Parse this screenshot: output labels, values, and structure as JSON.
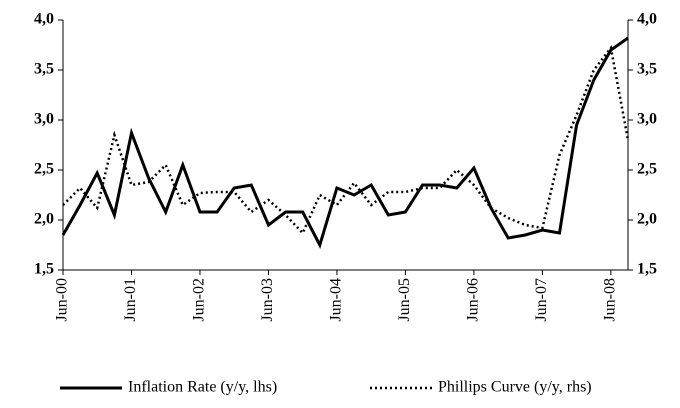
{
  "chart_data": {
    "type": "line",
    "categories": [
      "Jun-00",
      null,
      null,
      null,
      "Jun-01",
      null,
      null,
      null,
      "Jun-02",
      null,
      null,
      null,
      "Jun-03",
      null,
      null,
      null,
      "Jun-04",
      null,
      null,
      null,
      "Jun-05",
      null,
      null,
      null,
      "Jun-06",
      null,
      null,
      null,
      "Jun-07",
      null,
      null,
      null,
      "Jun-08",
      null
    ],
    "series": [
      {
        "name": "Inflation Rate (y/y, lhs)",
        "color": "#000000",
        "style": "solid",
        "values": [
          1.85,
          2.15,
          2.47,
          2.05,
          2.87,
          2.42,
          2.08,
          2.55,
          2.08,
          2.08,
          2.32,
          2.35,
          1.95,
          2.08,
          2.08,
          1.75,
          2.32,
          2.25,
          2.35,
          2.05,
          2.08,
          2.35,
          2.35,
          2.32,
          2.52,
          2.12,
          1.82,
          1.85,
          1.9,
          1.87,
          2.95,
          3.4,
          3.7,
          3.82
        ]
      },
      {
        "name": "Phillips Curve (y/y, rhs)",
        "color": "#000000",
        "style": "dotted",
        "axis": "y2",
        "values": [
          2.15,
          2.32,
          2.12,
          2.85,
          2.35,
          2.38,
          2.55,
          2.15,
          2.27,
          2.28,
          2.28,
          2.08,
          2.2,
          2.05,
          1.87,
          2.25,
          2.15,
          2.37,
          2.15,
          2.28,
          2.28,
          2.32,
          2.32,
          2.5,
          2.35,
          2.12,
          2.02,
          1.95,
          1.92,
          2.65,
          3.05,
          3.5,
          3.72,
          2.8
        ]
      }
    ],
    "ylim": [
      1.5,
      4.0
    ],
    "yticks": [
      {
        "value": 1.5,
        "label": "1,5"
      },
      {
        "value": 2.0,
        "label": "2,0"
      },
      {
        "value": 2.5,
        "label": "2,5"
      },
      {
        "value": 3.0,
        "label": "3,0"
      },
      {
        "value": 3.5,
        "label": "3,5"
      },
      {
        "value": 4.0,
        "label": "4,0"
      }
    ],
    "y2lim": [
      1.5,
      4.0
    ],
    "y2ticks": [
      {
        "value": 1.5,
        "label": "1,5"
      },
      {
        "value": 2.0,
        "label": "2,0"
      },
      {
        "value": 2.5,
        "label": "2,5"
      },
      {
        "value": 3.0,
        "label": "3,0"
      },
      {
        "value": 3.5,
        "label": "3,5"
      },
      {
        "value": 4.0,
        "label": "4,0"
      }
    ],
    "grid": false,
    "legend": "bottom"
  }
}
